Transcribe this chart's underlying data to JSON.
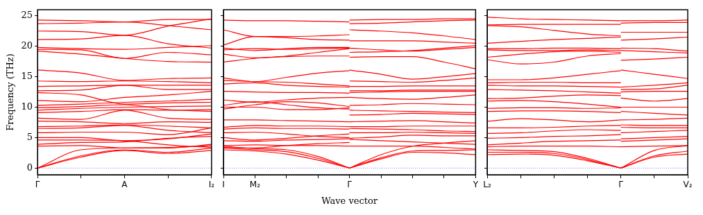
{
  "chart_data": [
    {
      "type": "line",
      "ylabel": "Frequency (THz)",
      "categories": [
        "Γ",
        null,
        "A",
        null,
        "I₂"
      ],
      "ylim": [
        -1.1,
        26
      ],
      "yticks": [
        0,
        5,
        10,
        15,
        20,
        25
      ],
      "marker": "none",
      "line_style": "solid",
      "ref_lines": [
        {
          "axis": "y",
          "value": 0,
          "color": "#7777ff",
          "line_style": "dotted"
        }
      ],
      "series": [
        {
          "color": "#ff0000",
          "values": [
            0,
            1.8,
            2.9,
            2.4,
            2.9
          ]
        },
        {
          "color": "#ff0000",
          "values": [
            0,
            2.0,
            3.0,
            2.6,
            3.3
          ]
        },
        {
          "color": "#ff0000",
          "values": [
            0,
            3.0,
            3.3,
            3.4,
            3.7
          ]
        },
        {
          "color": "#ff0000",
          "values": [
            3.6,
            3.7,
            3.3,
            3.3,
            3.9
          ]
        },
        {
          "color": "#ff0000",
          "values": [
            3.9,
            4.2,
            4.3,
            4.9,
            5.2
          ]
        },
        {
          "color": "#ff0000",
          "values": [
            4.6,
            4.6,
            4.5,
            3.8,
            3.4
          ]
        },
        {
          "color": "#ff0000",
          "values": [
            5.0,
            5.0,
            4.5,
            4.8,
            5.6
          ]
        },
        {
          "color": "#ff0000",
          "values": [
            5.8,
            5.9,
            5.9,
            5.5,
            6.6
          ]
        },
        {
          "color": "#ff0000",
          "values": [
            6.5,
            6.6,
            7.0,
            6.2,
            5.8
          ]
        },
        {
          "color": "#ff0000",
          "values": [
            6.8,
            6.9,
            7.1,
            6.9,
            6.6
          ]
        },
        {
          "color": "#ff0000",
          "values": [
            7.7,
            7.6,
            7.3,
            7.6,
            7.5
          ]
        },
        {
          "color": "#ff0000",
          "values": [
            8.2,
            8.0,
            9.5,
            8.2,
            8.0
          ]
        },
        {
          "color": "#ff0000",
          "values": [
            9.1,
            9.3,
            9.6,
            9.5,
            9.6
          ]
        },
        {
          "color": "#ff0000",
          "values": [
            9.5,
            9.8,
            10.0,
            10.1,
            10.2
          ]
        },
        {
          "color": "#ff0000",
          "values": [
            9.9,
            10.1,
            10.4,
            9.6,
            9.3
          ]
        },
        {
          "color": "#ff0000",
          "values": [
            10.3,
            10.5,
            10.8,
            11.0,
            11.3
          ]
        },
        {
          "color": "#ff0000",
          "values": [
            11.1,
            10.9,
            11.6,
            12.0,
            12.6
          ]
        },
        {
          "color": "#ff0000",
          "values": [
            12.4,
            12.0,
            10.5,
            10.7,
            10.8
          ]
        },
        {
          "color": "#ff0000",
          "values": [
            12.7,
            12.8,
            13.6,
            12.9,
            12.9
          ]
        },
        {
          "color": "#ff0000",
          "values": [
            13.4,
            13.5,
            13.6,
            13.6,
            13.6
          ]
        },
        {
          "color": "#ff0000",
          "values": [
            14.3,
            14.2,
            14.3,
            14.2,
            14.0
          ]
        },
        {
          "color": "#ff0000",
          "values": [
            16.1,
            15.6,
            14.4,
            14.7,
            14.8
          ]
        },
        {
          "color": "#ff0000",
          "values": [
            19.2,
            18.7,
            18.0,
            17.5,
            17.4
          ]
        },
        {
          "color": "#ff0000",
          "values": [
            19.5,
            19.4,
            18.0,
            19.0,
            18.6
          ]
        },
        {
          "color": "#ff0000",
          "values": [
            19.8,
            19.6,
            19.5,
            19.8,
            20.1
          ]
        },
        {
          "color": "#ff0000",
          "values": [
            21.1,
            21.2,
            21.8,
            20.4,
            19.7
          ]
        },
        {
          "color": "#ff0000",
          "values": [
            22.5,
            22.4,
            21.8,
            23.3,
            24.5
          ]
        },
        {
          "color": "#ff0000",
          "values": [
            23.7,
            23.8,
            24.0,
            23.4,
            22.7
          ]
        },
        {
          "color": "#ff0000",
          "values": [
            24.3,
            24.2,
            24.0,
            24.4,
            24.4
          ]
        }
      ]
    },
    {
      "type": "line",
      "xlabel": "Wave vector",
      "tick_labels": "x",
      "categories": [
        "I",
        "M₂",
        null,
        null,
        "Γ",
        null,
        null,
        null,
        "Y"
      ],
      "ylim": [
        -1.1,
        26
      ],
      "yticks": [
        0,
        5,
        10,
        15,
        20,
        25
      ],
      "marker": "none",
      "line_style": "solid",
      "ref_lines": [
        {
          "axis": "y",
          "value": 0,
          "color": "#7777ff",
          "line_style": "dotted"
        }
      ],
      "series": [
        {
          "color": "#ff0000",
          "values": [
            24.3,
            24.2,
            24.2,
            24.1,
            24.0,
            null,
            null,
            null,
            null
          ]
        },
        {
          "color": "#ff0000",
          "values": [
            22.7,
            21.6,
            21.6,
            21.7,
            21.9,
            null,
            null,
            null,
            null
          ]
        },
        {
          "color": "#ff0000",
          "values": [
            20.2,
            21.6,
            21.4,
            21.1,
            21.0,
            null,
            null,
            null,
            null
          ]
        },
        {
          "color": "#ff0000",
          "values": [
            19.7,
            19.3,
            19.6,
            19.8,
            19.8,
            null,
            null,
            null,
            null
          ]
        },
        {
          "color": "#ff0000",
          "values": [
            19.4,
            19.6,
            19.5,
            19.6,
            19.7,
            null,
            null,
            null,
            null
          ]
        },
        {
          "color": "#ff0000",
          "values": [
            18.7,
            18.1,
            18.3,
            18.4,
            18.4,
            null,
            null,
            null,
            null
          ]
        },
        {
          "color": "#ff0000",
          "values": [
            17.4,
            18.0,
            18.4,
            19.0,
            19.6,
            null,
            null,
            null,
            null
          ]
        },
        {
          "color": "#ff0000",
          "values": [
            14.8,
            14.2,
            14.9,
            15.6,
            16.0,
            null,
            null,
            null,
            null
          ]
        },
        {
          "color": "#ff0000",
          "values": [
            14.4,
            14.2,
            14.1,
            13.8,
            13.5,
            null,
            null,
            null,
            null
          ]
        },
        {
          "color": "#ff0000",
          "values": [
            13.8,
            14.0,
            13.6,
            13.4,
            13.3,
            null,
            null,
            null,
            null
          ]
        },
        {
          "color": "#ff0000",
          "values": [
            12.6,
            12.5,
            12.4,
            12.4,
            12.3,
            null,
            null,
            null,
            null
          ]
        },
        {
          "color": "#ff0000",
          "values": [
            11.2,
            10.8,
            11.2,
            11.5,
            11.6,
            null,
            null,
            null,
            null
          ]
        },
        {
          "color": "#ff0000",
          "values": [
            10.3,
            10.9,
            10.4,
            9.9,
            9.7,
            null,
            null,
            null,
            null
          ]
        },
        {
          "color": "#ff0000",
          "values": [
            10.0,
            10.0,
            9.6,
            9.6,
            9.9,
            null,
            null,
            null,
            null
          ]
        },
        {
          "color": "#ff0000",
          "values": [
            9.7,
            10.4,
            10.9,
            10.7,
            10.1,
            null,
            null,
            null,
            null
          ]
        },
        {
          "color": "#ff0000",
          "values": [
            7.9,
            7.9,
            7.8,
            7.7,
            7.6,
            null,
            null,
            null,
            null
          ]
        },
        {
          "color": "#ff0000",
          "values": [
            6.7,
            7.0,
            6.9,
            6.9,
            6.8,
            null,
            null,
            null,
            null
          ]
        },
        {
          "color": "#ff0000",
          "values": [
            6.4,
            6.6,
            6.5,
            6.5,
            6.4,
            null,
            null,
            null,
            null
          ]
        },
        {
          "color": "#ff0000",
          "values": [
            5.8,
            5.9,
            5.6,
            5.2,
            5.0,
            null,
            null,
            null,
            null
          ]
        },
        {
          "color": "#ff0000",
          "values": [
            5.0,
            4.6,
            4.9,
            5.3,
            5.6,
            null,
            null,
            null,
            null
          ]
        },
        {
          "color": "#ff0000",
          "values": [
            4.5,
            4.4,
            4.6,
            4.7,
            4.8,
            null,
            null,
            null,
            null
          ]
        },
        {
          "color": "#ff0000",
          "values": [
            3.7,
            3.8,
            3.7,
            3.7,
            3.6,
            null,
            null,
            null,
            null
          ]
        },
        {
          "color": "#ff0000",
          "values": [
            3.4,
            3.3,
            3.7,
            4.0,
            4.2,
            null,
            null,
            null,
            null
          ]
        },
        {
          "color": "#ff0000",
          "values": [
            3.0,
            2.8,
            2.3,
            1.3,
            0,
            null,
            null,
            null,
            null
          ]
        },
        {
          "color": "#ff0000",
          "values": [
            3.3,
            3.0,
            2.7,
            1.6,
            0,
            null,
            null,
            null,
            null
          ]
        },
        {
          "color": "#ff0000",
          "values": [
            3.6,
            3.2,
            3.0,
            1.9,
            0,
            null,
            null,
            null,
            null
          ]
        },
        {
          "color": "#ff0000",
          "values": [
            null,
            null,
            null,
            null,
            24.3,
            24.4,
            24.4,
            24.5,
            24.5
          ]
        },
        {
          "color": "#ff0000",
          "values": [
            null,
            null,
            null,
            null,
            23.7,
            23.8,
            24.0,
            24.2,
            24.3
          ]
        },
        {
          "color": "#ff0000",
          "values": [
            null,
            null,
            null,
            null,
            22.7,
            22.5,
            22.2,
            21.7,
            21.1
          ]
        },
        {
          "color": "#ff0000",
          "values": [
            null,
            null,
            null,
            null,
            20.9,
            20.9,
            20.9,
            20.7,
            20.5
          ]
        },
        {
          "color": "#ff0000",
          "values": [
            null,
            null,
            null,
            null,
            19.7,
            19.4,
            19.2,
            19.5,
            19.8
          ]
        },
        {
          "color": "#ff0000",
          "values": [
            null,
            null,
            null,
            null,
            19.0,
            19.1,
            19.3,
            19.7,
            20.1
          ]
        },
        {
          "color": "#ff0000",
          "values": [
            null,
            null,
            null,
            null,
            18.2,
            18.3,
            18.3,
            17.4,
            16.3
          ]
        },
        {
          "color": "#ff0000",
          "values": [
            null,
            null,
            null,
            null,
            16.1,
            15.4,
            14.6,
            15.0,
            15.5
          ]
        },
        {
          "color": "#ff0000",
          "values": [
            null,
            null,
            null,
            null,
            14.3,
            14.2,
            14.1,
            14.4,
            14.8
          ]
        },
        {
          "color": "#ff0000",
          "values": [
            null,
            null,
            null,
            null,
            13.4,
            13.4,
            13.5,
            13.5,
            13.5
          ]
        },
        {
          "color": "#ff0000",
          "values": [
            null,
            null,
            null,
            null,
            12.7,
            12.7,
            12.8,
            12.8,
            12.8
          ]
        },
        {
          "color": "#ff0000",
          "values": [
            null,
            null,
            null,
            null,
            12.4,
            12.5,
            12.6,
            12.6,
            12.6
          ]
        },
        {
          "color": "#ff0000",
          "values": [
            null,
            null,
            null,
            null,
            11.6,
            11.4,
            11.3,
            11.6,
            12.0
          ]
        },
        {
          "color": "#ff0000",
          "values": [
            null,
            null,
            null,
            null,
            10.3,
            10.4,
            10.6,
            10.5,
            10.4
          ]
        },
        {
          "color": "#ff0000",
          "values": [
            null,
            null,
            null,
            null,
            9.5,
            9.4,
            9.3,
            9.2,
            9.1
          ]
        },
        {
          "color": "#ff0000",
          "values": [
            null,
            null,
            null,
            null,
            8.7,
            8.8,
            9.0,
            8.9,
            8.8
          ]
        },
        {
          "color": "#ff0000",
          "values": [
            null,
            null,
            null,
            null,
            7.6,
            7.7,
            7.8,
            7.6,
            7.4
          ]
        },
        {
          "color": "#ff0000",
          "values": [
            null,
            null,
            null,
            null,
            6.8,
            6.8,
            6.9,
            6.9,
            6.9
          ]
        },
        {
          "color": "#ff0000",
          "values": [
            null,
            null,
            null,
            null,
            6.5,
            6.4,
            6.3,
            6.1,
            6.0
          ]
        },
        {
          "color": "#ff0000",
          "values": [
            null,
            null,
            null,
            null,
            5.8,
            5.8,
            5.9,
            5.8,
            5.7
          ]
        },
        {
          "color": "#ff0000",
          "values": [
            null,
            null,
            null,
            null,
            4.9,
            5.1,
            5.4,
            5.3,
            5.3
          ]
        },
        {
          "color": "#ff0000",
          "values": [
            null,
            null,
            null,
            null,
            4.7,
            4.5,
            4.3,
            4.1,
            3.9
          ]
        },
        {
          "color": "#ff0000",
          "values": [
            null,
            null,
            null,
            null,
            3.6,
            3.6,
            3.6,
            3.4,
            3.1
          ]
        },
        {
          "color": "#ff0000",
          "values": [
            null,
            null,
            null,
            null,
            0,
            1.5,
            2.6,
            2.5,
            2.2
          ]
        },
        {
          "color": "#ff0000",
          "values": [
            null,
            null,
            null,
            null,
            0,
            1.7,
            2.8,
            2.9,
            3.0
          ]
        },
        {
          "color": "#ff0000",
          "values": [
            null,
            null,
            null,
            null,
            0,
            2.2,
            3.6,
            4.1,
            4.5
          ]
        }
      ]
    },
    {
      "type": "line",
      "tick_labels": "x",
      "categories": [
        "L₂",
        null,
        null,
        null,
        "Γ",
        null,
        "V₂"
      ],
      "ylim": [
        -1.1,
        26
      ],
      "yticks": [
        0,
        5,
        10,
        15,
        20,
        25
      ],
      "marker": "none",
      "line_style": "solid",
      "ref_lines": [
        {
          "axis": "y",
          "value": 0,
          "color": "#7777ff",
          "line_style": "dotted"
        }
      ],
      "series": [
        {
          "color": "#ff0000",
          "values": [
            24.8,
            24.5,
            24.4,
            24.3,
            24.2,
            null,
            null
          ]
        },
        {
          "color": "#ff0000",
          "values": [
            23.5,
            23.6,
            23.6,
            23.6,
            23.6,
            null,
            null
          ]
        },
        {
          "color": "#ff0000",
          "values": [
            23.4,
            23.2,
            22.6,
            22.0,
            21.7,
            null,
            null
          ]
        },
        {
          "color": "#ff0000",
          "values": [
            20.5,
            20.8,
            21.1,
            21.3,
            21.5,
            null,
            null
          ]
        },
        {
          "color": "#ff0000",
          "values": [
            19.6,
            19.6,
            19.7,
            19.7,
            19.6,
            null,
            null
          ]
        },
        {
          "color": "#ff0000",
          "values": [
            19.4,
            19.3,
            19.3,
            19.4,
            19.3,
            null,
            null
          ]
        },
        {
          "color": "#ff0000",
          "values": [
            18.2,
            18.7,
            19.1,
            19.2,
            19.0,
            null,
            null
          ]
        },
        {
          "color": "#ff0000",
          "values": [
            17.8,
            17.1,
            17.4,
            18.4,
            18.8,
            null,
            null
          ]
        },
        {
          "color": "#ff0000",
          "values": [
            14.5,
            14.5,
            14.8,
            15.4,
            16.0,
            null,
            null
          ]
        },
        {
          "color": "#ff0000",
          "values": [
            14.0,
            14.1,
            14.1,
            14.0,
            14.0,
            null,
            null
          ]
        },
        {
          "color": "#ff0000",
          "values": [
            13.6,
            13.5,
            13.5,
            13.4,
            13.3,
            null,
            null
          ]
        },
        {
          "color": "#ff0000",
          "values": [
            12.9,
            12.8,
            12.7,
            12.5,
            12.3,
            null,
            null
          ]
        },
        {
          "color": "#ff0000",
          "values": [
            11.4,
            11.5,
            11.8,
            12.0,
            11.9,
            null,
            null
          ]
        },
        {
          "color": "#ff0000",
          "values": [
            11.0,
            11.1,
            10.9,
            10.5,
            10.0,
            null,
            null
          ]
        },
        {
          "color": "#ff0000",
          "values": [
            9.8,
            9.9,
            9.9,
            9.8,
            9.9,
            null,
            null
          ]
        },
        {
          "color": "#ff0000",
          "values": [
            9.3,
            9.4,
            9.4,
            9.3,
            9.1,
            null,
            null
          ]
        },
        {
          "color": "#ff0000",
          "values": [
            7.7,
            8.1,
            7.9,
            7.6,
            7.9,
            null,
            null
          ]
        },
        {
          "color": "#ff0000",
          "values": [
            6.6,
            6.6,
            6.7,
            6.9,
            7.0,
            null,
            null
          ]
        },
        {
          "color": "#ff0000",
          "values": [
            5.7,
            5.8,
            6.1,
            6.3,
            6.2,
            null,
            null
          ]
        },
        {
          "color": "#ff0000",
          "values": [
            4.9,
            5.0,
            5.2,
            5.3,
            5.5,
            null,
            null
          ]
        },
        {
          "color": "#ff0000",
          "values": [
            3.8,
            4.1,
            4.4,
            4.5,
            4.6,
            null,
            null
          ]
        },
        {
          "color": "#ff0000",
          "values": [
            3.5,
            3.6,
            3.6,
            3.6,
            3.5,
            null,
            null
          ]
        },
        {
          "color": "#ff0000",
          "values": [
            2.2,
            2.3,
            2.1,
            1.2,
            0,
            null,
            null
          ]
        },
        {
          "color": "#ff0000",
          "values": [
            2.6,
            2.6,
            2.4,
            1.4,
            0,
            null,
            null
          ]
        },
        {
          "color": "#ff0000",
          "values": [
            3.0,
            2.9,
            2.7,
            1.6,
            0,
            null,
            null
          ]
        },
        {
          "color": "#ff0000",
          "values": [
            null,
            null,
            null,
            null,
            24.2,
            24.2,
            24.3
          ]
        },
        {
          "color": "#ff0000",
          "values": [
            null,
            null,
            null,
            null,
            23.8,
            23.9,
            23.9
          ]
        },
        {
          "color": "#ff0000",
          "values": [
            null,
            null,
            null,
            null,
            22.3,
            22.3,
            22.3
          ]
        },
        {
          "color": "#ff0000",
          "values": [
            null,
            null,
            null,
            null,
            21.0,
            21.2,
            21.5
          ]
        },
        {
          "color": "#ff0000",
          "values": [
            null,
            null,
            null,
            null,
            19.7,
            19.6,
            19.2
          ]
        },
        {
          "color": "#ff0000",
          "values": [
            null,
            null,
            null,
            null,
            19.3,
            19.1,
            18.9
          ]
        },
        {
          "color": "#ff0000",
          "values": [
            null,
            null,
            null,
            null,
            17.7,
            17.9,
            18.2
          ]
        },
        {
          "color": "#ff0000",
          "values": [
            null,
            null,
            null,
            null,
            16.1,
            15.4,
            14.7
          ]
        },
        {
          "color": "#ff0000",
          "values": [
            null,
            null,
            null,
            null,
            13.3,
            13.6,
            14.0
          ]
        },
        {
          "color": "#ff0000",
          "values": [
            null,
            null,
            null,
            null,
            12.9,
            13.0,
            13.6
          ]
        },
        {
          "color": "#ff0000",
          "values": [
            null,
            null,
            null,
            null,
            12.5,
            12.6,
            12.6
          ]
        },
        {
          "color": "#ff0000",
          "values": [
            null,
            null,
            null,
            null,
            11.5,
            11.0,
            11.4
          ]
        },
        {
          "color": "#ff0000",
          "values": [
            null,
            null,
            null,
            null,
            10.0,
            10.0,
            10.0
          ]
        },
        {
          "color": "#ff0000",
          "values": [
            null,
            null,
            null,
            null,
            9.3,
            9.0,
            8.7
          ]
        },
        {
          "color": "#ff0000",
          "values": [
            null,
            null,
            null,
            null,
            7.9,
            8.0,
            8.2
          ]
        },
        {
          "color": "#ff0000",
          "values": [
            null,
            null,
            null,
            null,
            7.1,
            7.0,
            7.0
          ]
        },
        {
          "color": "#ff0000",
          "values": [
            null,
            null,
            null,
            null,
            6.7,
            6.6,
            6.6
          ]
        },
        {
          "color": "#ff0000",
          "values": [
            null,
            null,
            null,
            null,
            5.8,
            6.0,
            6.2
          ]
        },
        {
          "color": "#ff0000",
          "values": [
            null,
            null,
            null,
            null,
            4.8,
            5.0,
            5.2
          ]
        },
        {
          "color": "#ff0000",
          "values": [
            null,
            null,
            null,
            null,
            4.4,
            4.6,
            4.8
          ]
        },
        {
          "color": "#ff0000",
          "values": [
            null,
            null,
            null,
            null,
            3.5,
            3.6,
            3.7
          ]
        },
        {
          "color": "#ff0000",
          "values": [
            null,
            null,
            null,
            null,
            0,
            2.0,
            2.8
          ]
        },
        {
          "color": "#ff0000",
          "values": [
            null,
            null,
            null,
            null,
            0,
            1.8,
            2.3
          ]
        },
        {
          "color": "#ff0000",
          "values": [
            null,
            null,
            null,
            null,
            0,
            2.9,
            3.7
          ]
        }
      ]
    }
  ]
}
